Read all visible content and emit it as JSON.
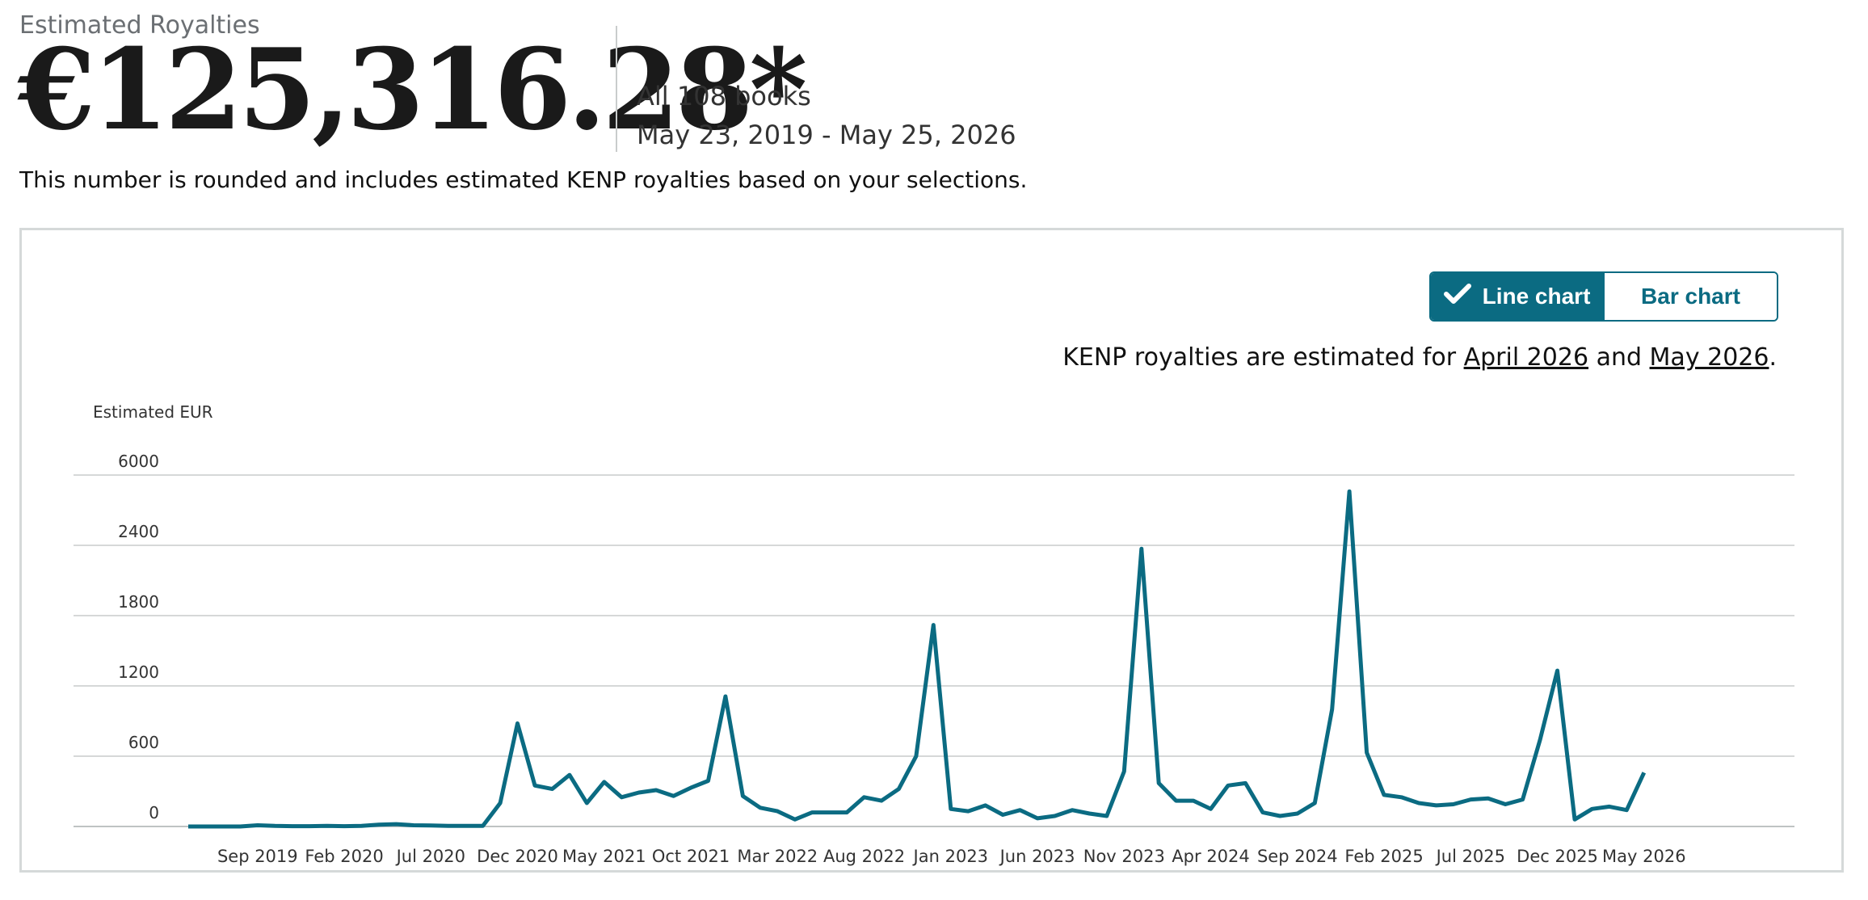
{
  "header": {
    "label": "Estimated Royalties",
    "amount": "€125,316.28*",
    "scope": "All 108 books",
    "date_range": "May 23, 2019 - May 25, 2026",
    "note": "This number is rounded and includes estimated KENP royalties based on your selections."
  },
  "toggle": {
    "line_label": "Line chart",
    "bar_label": "Bar chart",
    "selected": "Line chart"
  },
  "kenp_note": {
    "prefix": "KENP royalties are estimated for ",
    "month1": "April 2026",
    "and": " and ",
    "month2": "May 2026",
    "suffix": "."
  },
  "colors": {
    "accent": "#0b6b82",
    "grid": "#c8cccc",
    "text_muted": "#6b6f73"
  },
  "chart_data": {
    "type": "line",
    "ylabel": "Estimated EUR",
    "yticks": [
      0,
      600,
      1200,
      1800,
      2400,
      6000
    ],
    "xtick_labels": [
      "Sep 2019",
      "Feb 2020",
      "Jul 2020",
      "Dec 2020",
      "May 2021",
      "Oct 2021",
      "Mar 2022",
      "Aug 2022",
      "Jan 2023",
      "Jun 2023",
      "Nov 2023",
      "Apr 2024",
      "Sep 2024",
      "Feb 2025",
      "Jul 2025",
      "Dec 2025",
      "May 2026"
    ],
    "x_start": "May 2019",
    "x_end": "May 2026",
    "values": [
      0,
      0,
      0,
      0,
      10,
      5,
      3,
      3,
      5,
      3,
      5,
      15,
      20,
      10,
      8,
      5,
      5,
      5,
      200,
      880,
      350,
      320,
      440,
      200,
      380,
      250,
      290,
      310,
      260,
      330,
      390,
      1110,
      260,
      160,
      130,
      60,
      120,
      120,
      120,
      250,
      220,
      320,
      600,
      1720,
      150,
      130,
      180,
      100,
      140,
      70,
      90,
      140,
      110,
      90,
      470,
      2370,
      370,
      220,
      220,
      150,
      350,
      370,
      120,
      90,
      110,
      200,
      1000,
      2860,
      630,
      270,
      250,
      200,
      180,
      190,
      230,
      240,
      190,
      230,
      740,
      1330,
      60,
      150,
      170,
      140,
      460
    ],
    "grid": true
  }
}
